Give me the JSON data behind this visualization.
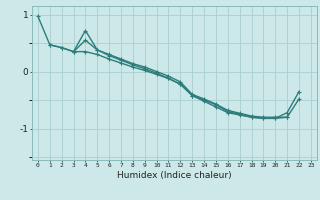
{
  "title": "",
  "xlabel": "Humidex (Indice chaleur)",
  "ylabel": "",
  "background_color": "#cce8e8",
  "line_color": "#2e7d7d",
  "grid_color": "#aad0d0",
  "xlim": [
    -0.5,
    23.5
  ],
  "ylim": [
    -1.55,
    1.15
  ],
  "x": [
    0,
    1,
    2,
    3,
    4,
    5,
    6,
    7,
    8,
    9,
    10,
    11,
    12,
    13,
    14,
    15,
    16,
    17,
    18,
    19,
    20,
    21,
    22,
    23
  ],
  "line1": [
    0.97,
    0.47,
    0.42,
    0.35,
    0.55,
    0.38,
    0.3,
    0.22,
    0.14,
    0.08,
    0.0,
    -0.08,
    -0.18,
    -0.4,
    -0.48,
    -0.57,
    -0.68,
    -0.73,
    -0.78,
    -0.8,
    -0.8,
    -0.8,
    null,
    null
  ],
  "line2": [
    null,
    null,
    null,
    0.35,
    0.72,
    0.38,
    0.28,
    0.2,
    0.12,
    0.05,
    -0.03,
    -0.12,
    -0.22,
    -0.42,
    -0.52,
    -0.62,
    -0.72,
    -0.76,
    -0.8,
    -0.82,
    -0.82,
    -0.72,
    -0.35,
    null
  ],
  "line3": [
    null,
    0.47,
    0.42,
    0.35,
    0.35,
    0.3,
    0.22,
    0.15,
    0.08,
    0.02,
    -0.05,
    -0.12,
    -0.22,
    -0.42,
    -0.5,
    -0.58,
    -0.7,
    -0.75,
    -0.8,
    -0.82,
    -0.82,
    -0.8,
    -0.48,
    null
  ]
}
